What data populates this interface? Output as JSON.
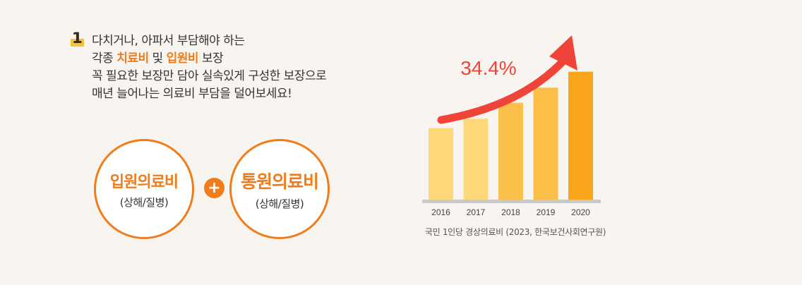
{
  "benefit": {
    "number": "1",
    "lines": [
      [
        "다치거나, 아파서 부담해야 하는"
      ],
      [
        "각종 ",
        "치료비",
        " 및 ",
        "입원비",
        " 보장"
      ],
      [
        "꼭 필요한 보장만 담아 실속있게 구성한 보장으로"
      ],
      [
        "매년 늘어나는 의료비 부담을 덜어보세요!"
      ]
    ],
    "line1": "다치거나, 아파서 부담해야 하는",
    "line2_a": "각종 ",
    "line2_hl1": "치료비",
    "line2_b": " 및 ",
    "line2_hl2": "입원비",
    "line2_c": " 보장",
    "line3": "꼭 필요한 보장만 담아 실속있게 구성한 보장으로",
    "line4": "매년 늘어나는 의료비 부담을 덜어보세요!"
  },
  "coverage": {
    "left_title": "입원의료비",
    "left_sub": "(상해/질병)",
    "plus": "+",
    "right_title": "통원의료비",
    "right_sub": "(상해/질병)"
  },
  "colors": {
    "accent": "#f07c1c",
    "arrow": "#f0443a",
    "bars": [
      "#fdd97a",
      "#fdd97a",
      "#fbc04a",
      "#fbbf48",
      "#f9a51a"
    ]
  },
  "chart_data": {
    "type": "bar",
    "categories": [
      "2016",
      "2017",
      "2018",
      "2019",
      "2020"
    ],
    "values": [
      76,
      86,
      103,
      119,
      136
    ],
    "growth_label": "34.4%",
    "caption": "국민 1인당 경상의료비 (2023, 한국보건사회연구원)",
    "ylim": [
      0,
      150
    ]
  }
}
